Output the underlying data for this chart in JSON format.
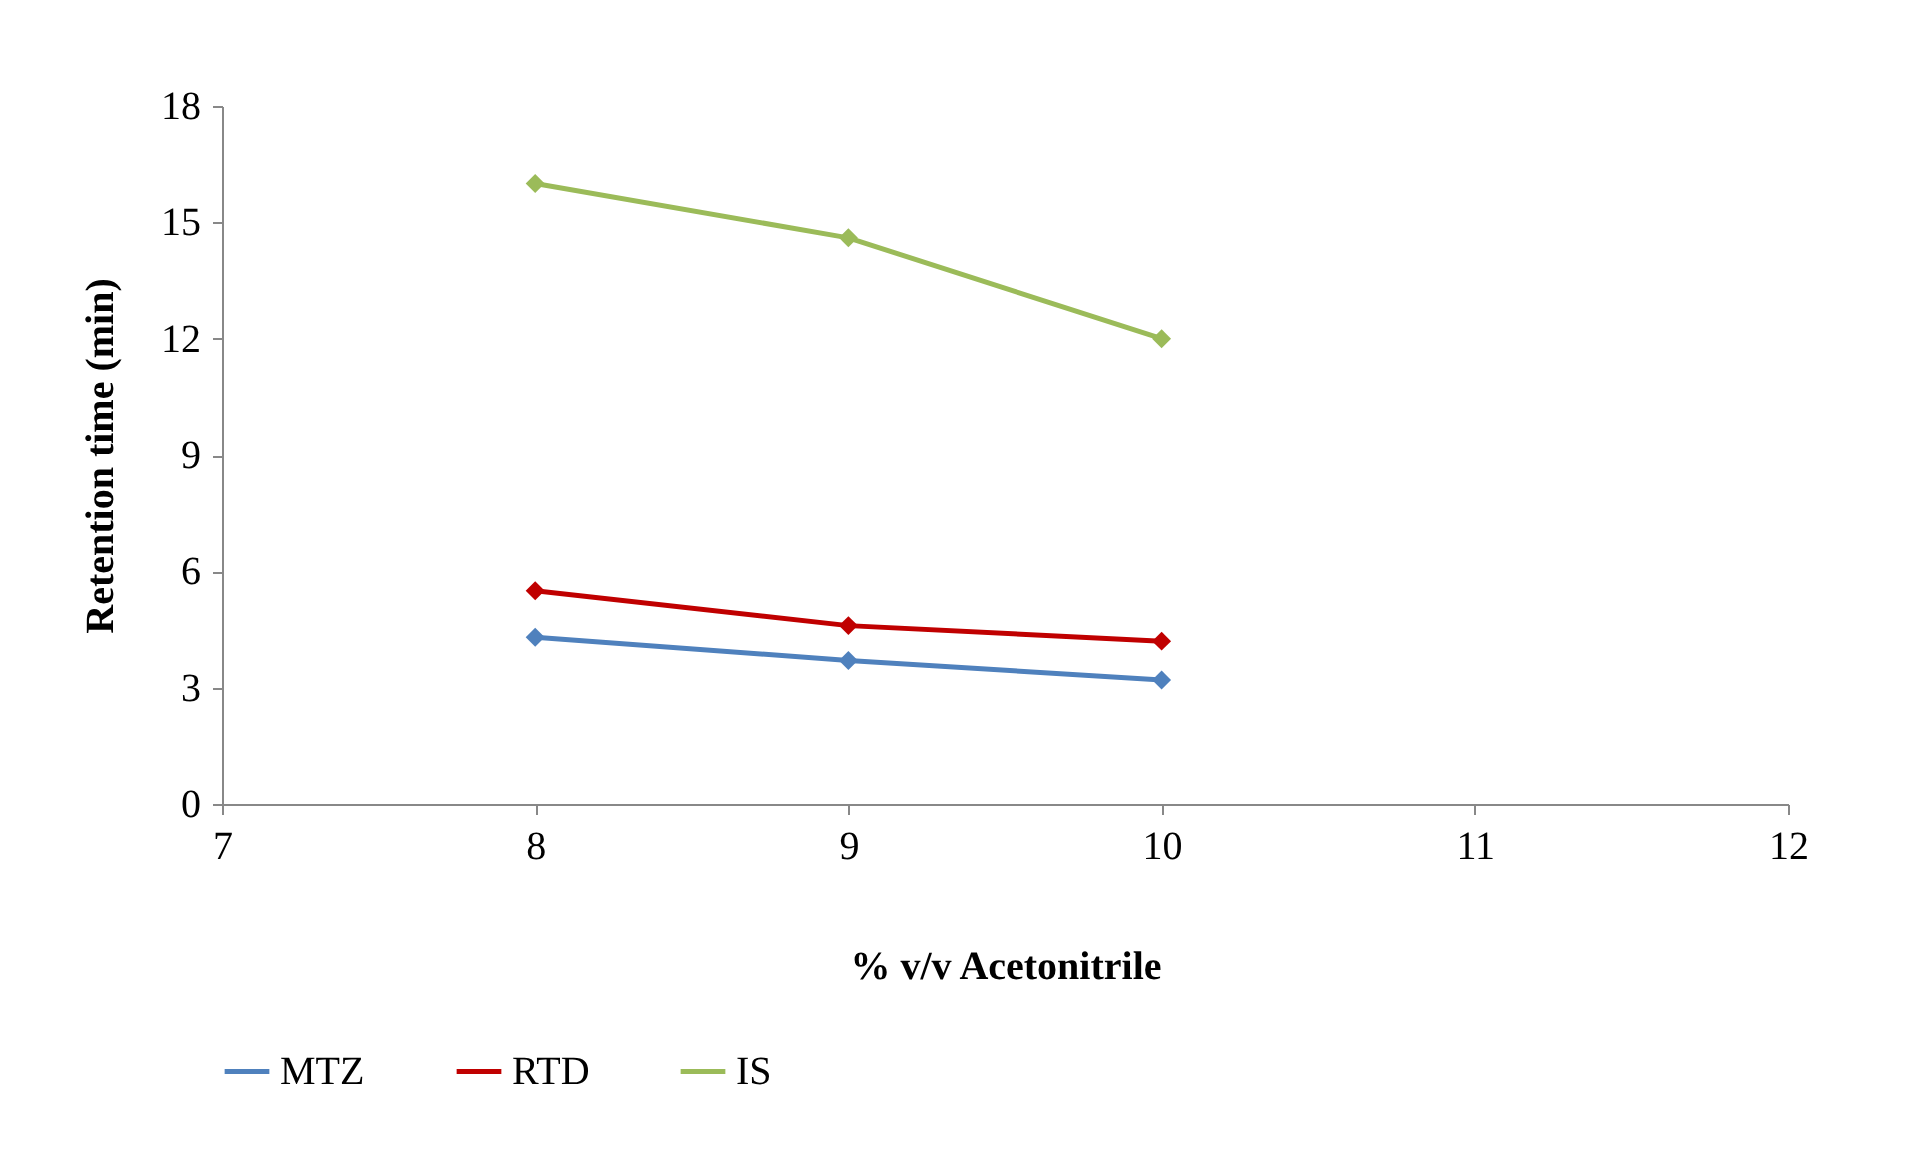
{
  "chart_data": {
    "type": "line",
    "xlabel": "% v/v Acetonitrile",
    "ylabel": "Retention time (min)",
    "x": [
      8,
      9,
      10
    ],
    "series": [
      {
        "name": "MTZ",
        "color": "#4f81bd",
        "values": [
          4.3,
          3.7,
          3.2
        ]
      },
      {
        "name": "RTD",
        "color": "#c00000",
        "values": [
          5.5,
          4.6,
          4.2
        ]
      },
      {
        "name": "IS",
        "color": "#9bbb59",
        "values": [
          16,
          14.6,
          12
        ]
      }
    ],
    "xlim": [
      7,
      12
    ],
    "xticks": [
      7,
      8,
      9,
      10,
      11,
      12
    ],
    "ylim": [
      0,
      18
    ],
    "yticks": [
      0,
      3,
      6,
      9,
      12,
      15,
      18
    ],
    "grid": false,
    "legend": "bottom",
    "marker": "diamond",
    "line_style": "solid"
  }
}
